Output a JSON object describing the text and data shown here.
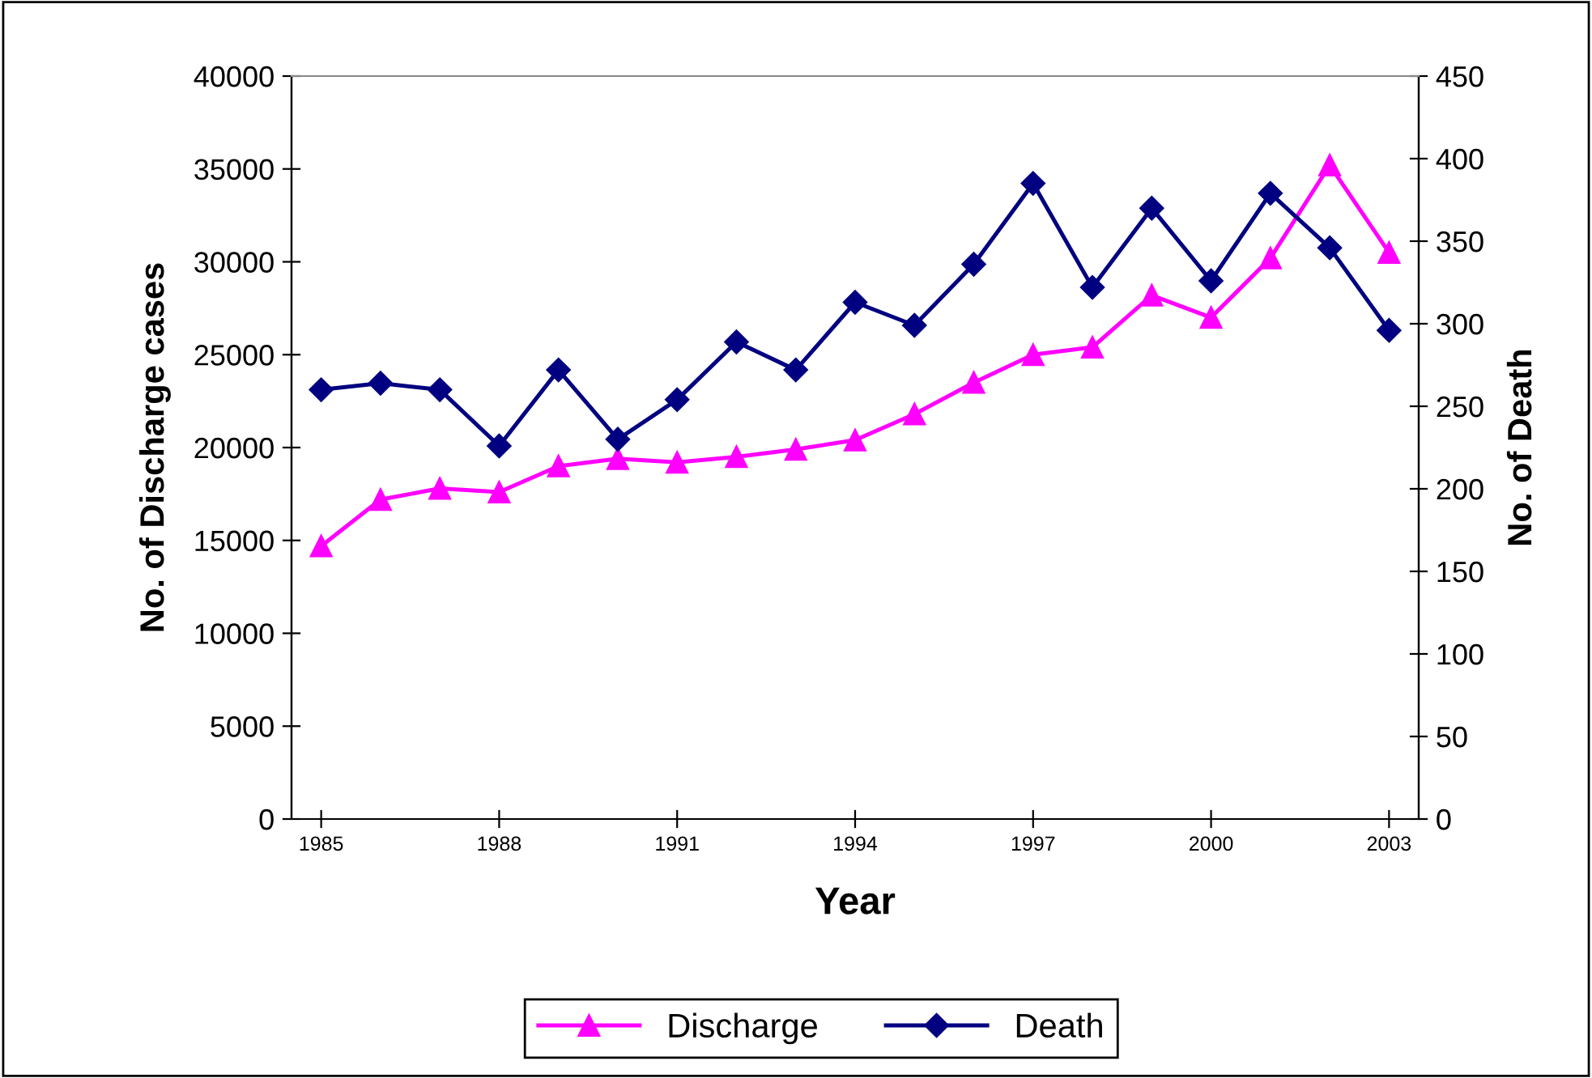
{
  "chart_data": {
    "type": "line",
    "xlabel": "Year",
    "ylabel": "No. of Discharge cases",
    "y2label": "No. of Death",
    "x": [
      1985,
      1986,
      1987,
      1988,
      1989,
      1990,
      1991,
      1992,
      1993,
      1994,
      1995,
      1996,
      1997,
      1998,
      1999,
      2000,
      2001,
      2002,
      2003
    ],
    "xlim": [
      1984.5,
      2003.5
    ],
    "xticks": [
      1985,
      1988,
      1991,
      1994,
      1997,
      2000,
      2003
    ],
    "ylim": [
      0,
      40000
    ],
    "yticks": [
      0,
      5000,
      10000,
      15000,
      20000,
      25000,
      30000,
      35000,
      40000
    ],
    "y2lim": [
      0,
      450
    ],
    "y2ticks": [
      0,
      50,
      100,
      150,
      200,
      250,
      300,
      350,
      400,
      450
    ],
    "grid": false,
    "legend": "bottom",
    "line_style": "solid",
    "series": [
      {
        "name": "Discharge",
        "color": "#ff00ff",
        "marker": "triangle",
        "values": [
          14700,
          17200,
          17800,
          17600,
          19000,
          19400,
          19200,
          19500,
          19900,
          20400,
          21800,
          23500,
          25000,
          25400,
          28200,
          27000,
          30200,
          35200,
          30500
        ]
      },
      {
        "name": "Death",
        "color": "#000080",
        "marker": "diamond",
        "axis": "y2",
        "values": [
          260,
          264,
          260,
          226,
          272,
          230,
          254,
          289,
          272,
          313,
          299,
          336,
          385,
          322,
          370,
          326,
          379,
          346,
          296
        ]
      }
    ]
  }
}
